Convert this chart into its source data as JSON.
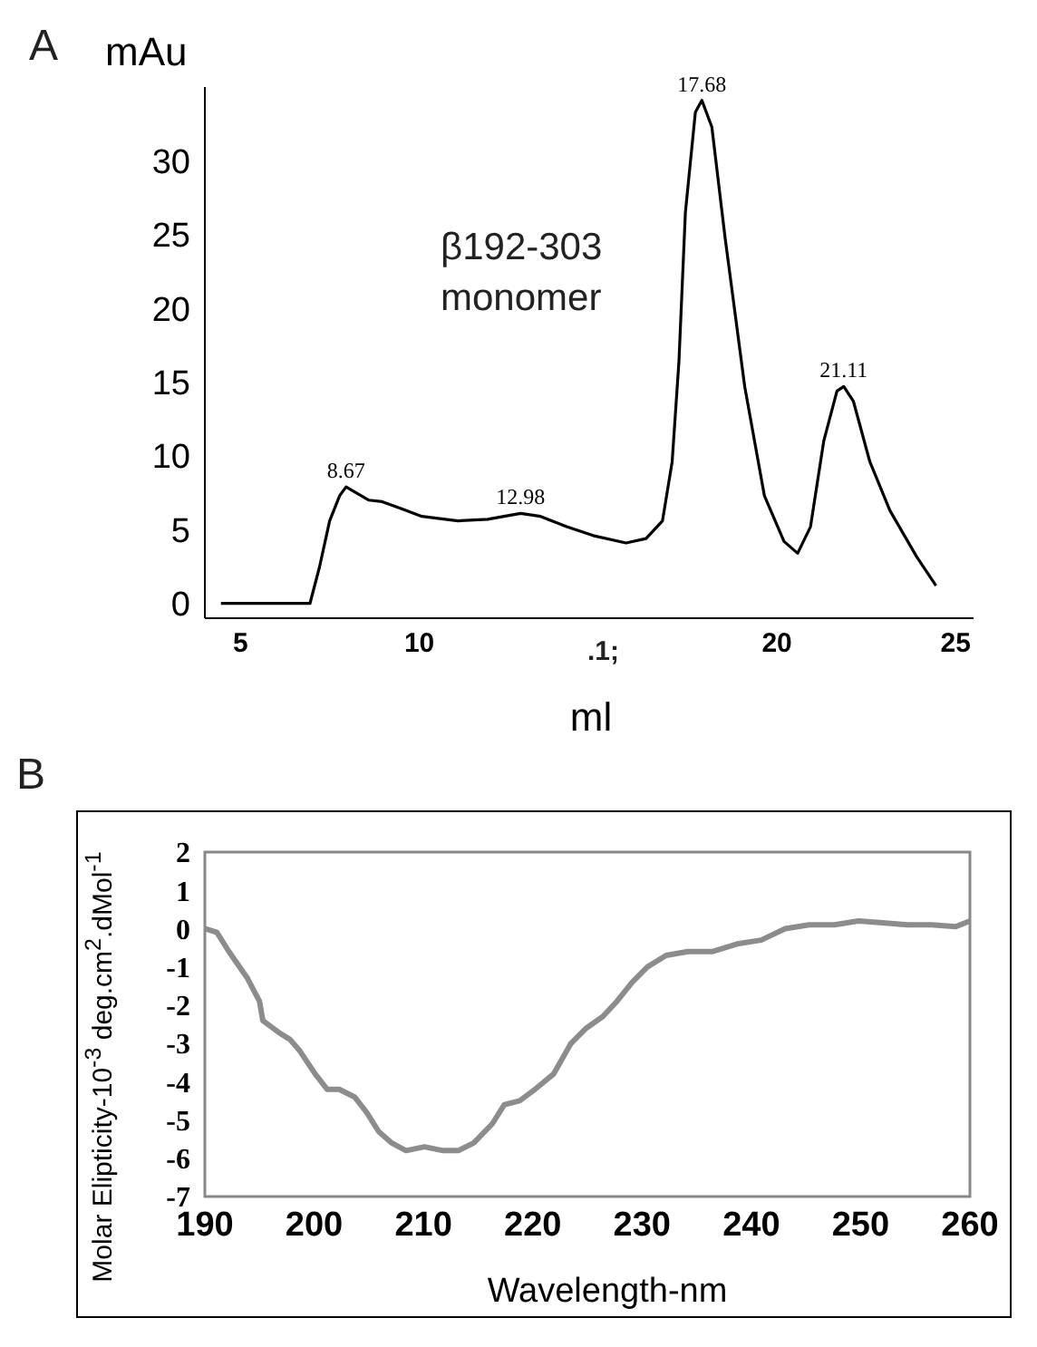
{
  "chart_data": [
    {
      "type": "line",
      "xlabel": "ml",
      "ylabel": "mAu",
      "annotations": [
        "A",
        "β192-303 monomer",
        ".1;",
        {
          "text": "8.67",
          "x": 7.95,
          "y": 7.9
        },
        {
          "text": "12.98",
          "x": 12.83,
          "y": 6.1
        },
        {
          "text": "17.68",
          "x": 17.9,
          "y": 34.1
        },
        {
          "text": "21.11",
          "x": 21.87,
          "y": 14.7
        }
      ],
      "x": [
        4.45,
        6.94,
        7.21,
        7.49,
        7.77,
        7.95,
        8.23,
        8.59,
        8.96,
        9.52,
        10.07,
        11.08,
        11.91,
        12.83,
        13.39,
        14.12,
        14.86,
        15.78,
        16.34,
        16.8,
        17.07,
        17.26,
        17.44,
        17.72,
        17.9,
        18.18,
        18.55,
        19.1,
        19.65,
        20.2,
        20.58,
        20.94,
        21.31,
        21.68,
        21.87,
        22.14,
        22.6,
        23.16,
        23.9,
        24.45
      ],
      "series": [
        {
          "color": "#000000",
          "values": [
            0,
            0,
            2.5,
            5.6,
            7.3,
            7.9,
            7.5,
            7.0,
            6.9,
            6.4,
            5.9,
            5.6,
            5.7,
            6.1,
            5.9,
            5.2,
            4.6,
            4.1,
            4.4,
            5.6,
            9.6,
            16.4,
            26.5,
            33.3,
            34.1,
            32.3,
            24.8,
            14.7,
            7.3,
            4.2,
            3.4,
            5.2,
            11.0,
            14.4,
            14.7,
            13.7,
            9.6,
            6.3,
            3.2,
            1.2
          ]
        }
      ],
      "xlim": [
        4,
        25.5
      ],
      "xticks": [
        5,
        10,
        20,
        25
      ],
      "ylim": [
        -1,
        35
      ],
      "yticks": [
        0,
        5,
        10,
        15,
        20,
        25,
        30
      ],
      "marker": "none",
      "line_style": "solid",
      "grid": false
    },
    {
      "type": "line",
      "xlabel": "Wavelength-nm",
      "ylabel": "Molar Elipticity-10$^{-3}$ deg.cm$^{2}$.dMol$^{-1}$",
      "annotations": [
        "B"
      ],
      "x": [
        190,
        191.1,
        192.2,
        193.9,
        195,
        195.3,
        196.7,
        197.8,
        198.7,
        200.1,
        201.2,
        202.3,
        203.7,
        204.8,
        205.9,
        207.1,
        208.4,
        210.1,
        211.8,
        213.2,
        214.6,
        216.3,
        217.4,
        218.8,
        220.2,
        221.9,
        223.5,
        224.9,
        226.4,
        227.7,
        229.1,
        230.5,
        232.2,
        234.2,
        236.4,
        238.7,
        240.9,
        243.1,
        245.3,
        247.6,
        249.8,
        252,
        254.3,
        256.5,
        258.7,
        260
      ],
      "series": [
        {
          "color": "#8c8c8c",
          "values": [
            0,
            -0.1,
            -0.6,
            -1.3,
            -1.9,
            -2.4,
            -2.7,
            -2.9,
            -3.2,
            -3.8,
            -4.2,
            -4.2,
            -4.4,
            -4.8,
            -5.3,
            -5.6,
            -5.8,
            -5.7,
            -5.8,
            -5.8,
            -5.6,
            -5.1,
            -4.6,
            -4.5,
            -4.2,
            -3.8,
            -3.0,
            -2.6,
            -2.3,
            -1.9,
            -1.4,
            -1.0,
            -0.7,
            -0.6,
            -0.6,
            -0.4,
            -0.3,
            0,
            0.1,
            0.1,
            0.2,
            0.15,
            0.1,
            0.1,
            0.05,
            0.2
          ]
        }
      ],
      "xlim": [
        190,
        260
      ],
      "xticks": [
        190,
        200,
        210,
        220,
        230,
        240,
        250,
        260
      ],
      "ylim": [
        -7,
        2
      ],
      "yticks": [
        -7,
        -6,
        -5,
        -4,
        -3,
        -2,
        -1,
        0,
        1,
        2
      ],
      "marker": "none",
      "line_style": "solid",
      "grid": false
    }
  ]
}
